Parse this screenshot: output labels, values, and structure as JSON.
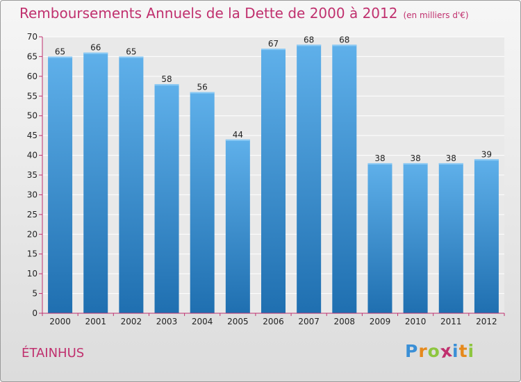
{
  "header": {
    "title": "Remboursements Annuels de la Dette de 2000 à 2012",
    "subtitle": "(en milliers d'€)"
  },
  "footer": {
    "commune": "ÉTAINHUS",
    "logo_letters": [
      "P",
      "r",
      "o",
      "x",
      "i",
      "t",
      "i"
    ],
    "logo_colors": [
      "#3a8fd6",
      "#e6891c",
      "#8dc63f",
      "#c0306e",
      "#3a8fd6",
      "#e6891c",
      "#8dc63f"
    ]
  },
  "chart_data": {
    "type": "bar",
    "title": "Remboursements Annuels de la Dette de 2000 à 2012",
    "subtitle": "(en milliers d'€)",
    "categories": [
      "2000",
      "2001",
      "2002",
      "2003",
      "2004",
      "2005",
      "2006",
      "2007",
      "2008",
      "2009",
      "2010",
      "2011",
      "2012"
    ],
    "values": [
      65,
      66,
      65,
      58,
      56,
      44,
      67,
      68,
      68,
      38,
      38,
      38,
      39
    ],
    "ylim": [
      0,
      70
    ],
    "yticks": [
      0,
      5,
      10,
      15,
      20,
      25,
      30,
      35,
      40,
      45,
      50,
      55,
      60,
      65,
      70
    ],
    "grid": true,
    "bar_color_top": "#5fb0ea",
    "bar_color_bottom": "#1f6fb0",
    "axis_color": "#c0306e",
    "grid_color": "#ffffff"
  }
}
